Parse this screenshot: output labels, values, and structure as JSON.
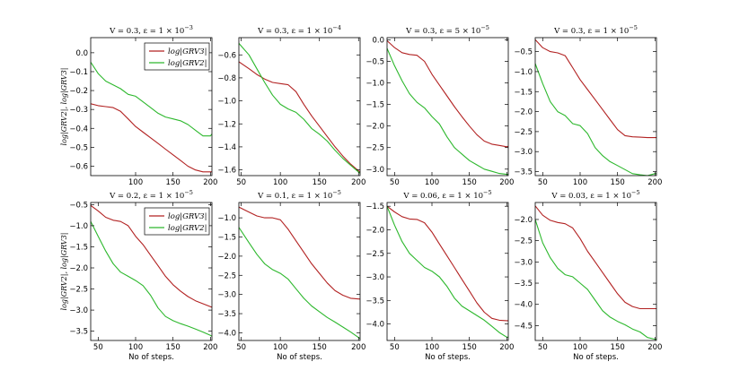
{
  "chart_data": [
    {
      "type": "line",
      "title": "V = 0.3, ε = 1 × 10^-3",
      "xlabel": "",
      "ylabel": "log|GRV2|, log|GRV3|",
      "xlim": [
        40,
        202
      ],
      "ylim": [
        -0.65,
        0.08
      ],
      "xticks": [
        100,
        150,
        200
      ],
      "yticks": [
        0.0,
        -0.1,
        -0.2,
        -0.3,
        -0.4,
        -0.5,
        -0.6
      ],
      "legend": true,
      "series": [
        {
          "name": "log|GRV3|",
          "color": "#b22222",
          "x": [
            40,
            50,
            60,
            70,
            80,
            90,
            100,
            110,
            120,
            130,
            140,
            150,
            160,
            170,
            180,
            190,
            200,
            202
          ],
          "y": [
            -0.27,
            -0.28,
            -0.285,
            -0.29,
            -0.31,
            -0.35,
            -0.39,
            -0.42,
            -0.45,
            -0.48,
            -0.51,
            -0.54,
            -0.57,
            -0.6,
            -0.62,
            -0.63,
            -0.63,
            -0.63
          ]
        },
        {
          "name": "log|GRV2|",
          "color": "#2db82d",
          "x": [
            40,
            50,
            60,
            70,
            80,
            90,
            100,
            110,
            120,
            130,
            140,
            150,
            160,
            170,
            180,
            190,
            200,
            202
          ],
          "y": [
            -0.05,
            -0.11,
            -0.15,
            -0.17,
            -0.19,
            -0.22,
            -0.23,
            -0.26,
            -0.29,
            -0.32,
            -0.34,
            -0.35,
            -0.36,
            -0.38,
            -0.41,
            -0.44,
            -0.44,
            -0.43
          ]
        }
      ]
    },
    {
      "type": "line",
      "title": "V = 0.3, ε = 1 × 10^-4",
      "xlabel": "",
      "ylabel": "",
      "xlim": [
        47,
        202
      ],
      "ylim": [
        -1.65,
        -0.45
      ],
      "xticks": [
        50,
        100,
        150,
        200
      ],
      "yticks": [
        -0.6,
        -0.8,
        -1.0,
        -1.2,
        -1.4,
        -1.6
      ],
      "legend": false,
      "series": [
        {
          "name": "log|GRV3|",
          "color": "#b22222",
          "x": [
            47,
            60,
            70,
            80,
            90,
            100,
            110,
            120,
            130,
            140,
            150,
            160,
            170,
            180,
            190,
            202
          ],
          "y": [
            -0.66,
            -0.72,
            -0.77,
            -0.81,
            -0.84,
            -0.85,
            -0.86,
            -0.92,
            -1.03,
            -1.13,
            -1.22,
            -1.31,
            -1.4,
            -1.48,
            -1.55,
            -1.62
          ]
        },
        {
          "name": "log|GRV2|",
          "color": "#2db82d",
          "x": [
            47,
            60,
            70,
            80,
            90,
            100,
            110,
            120,
            130,
            140,
            150,
            160,
            170,
            180,
            190,
            202
          ],
          "y": [
            -0.5,
            -0.6,
            -0.72,
            -0.84,
            -0.95,
            -1.03,
            -1.07,
            -1.1,
            -1.16,
            -1.24,
            -1.29,
            -1.35,
            -1.43,
            -1.5,
            -1.56,
            -1.63
          ]
        }
      ]
    },
    {
      "type": "line",
      "title": "V = 0.3, ε = 5 × 10^-5",
      "xlabel": "",
      "ylabel": "",
      "xlim": [
        40,
        202
      ],
      "ylim": [
        -3.15,
        0.05
      ],
      "xticks": [
        50,
        100,
        150,
        200
      ],
      "yticks": [
        0.0,
        -0.5,
        -1.0,
        -1.5,
        -2.0,
        -2.5,
        -3.0
      ],
      "legend": false,
      "series": [
        {
          "name": "log|GRV3|",
          "color": "#b22222",
          "x": [
            40,
            50,
            60,
            70,
            80,
            90,
            100,
            110,
            120,
            130,
            140,
            150,
            160,
            170,
            180,
            190,
            200,
            202
          ],
          "y": [
            -0.02,
            -0.18,
            -0.3,
            -0.34,
            -0.36,
            -0.5,
            -0.8,
            -1.05,
            -1.3,
            -1.55,
            -1.78,
            -2.0,
            -2.2,
            -2.35,
            -2.42,
            -2.45,
            -2.48,
            -2.47
          ]
        },
        {
          "name": "log|GRV2|",
          "color": "#2db82d",
          "x": [
            40,
            50,
            60,
            70,
            80,
            90,
            100,
            110,
            120,
            130,
            140,
            150,
            160,
            170,
            180,
            190,
            200,
            202
          ],
          "y": [
            -0.2,
            -0.6,
            -0.95,
            -1.25,
            -1.45,
            -1.58,
            -1.78,
            -1.95,
            -2.25,
            -2.5,
            -2.65,
            -2.8,
            -2.9,
            -3.0,
            -3.05,
            -3.1,
            -3.12,
            -3.12
          ]
        }
      ]
    },
    {
      "type": "line",
      "title": "V = 0.3, ε = 1 × 10^-5",
      "xlabel": "",
      "ylabel": "",
      "xlim": [
        40,
        202
      ],
      "ylim": [
        -3.6,
        -0.15
      ],
      "xticks": [
        50,
        100,
        150,
        200
      ],
      "yticks": [
        -0.5,
        -1.0,
        -1.5,
        -2.0,
        -2.5,
        -3.0,
        -3.5
      ],
      "legend": false,
      "series": [
        {
          "name": "log|GRV3|",
          "color": "#b22222",
          "x": [
            40,
            50,
            60,
            70,
            80,
            90,
            100,
            110,
            120,
            130,
            140,
            150,
            160,
            170,
            180,
            190,
            200,
            202
          ],
          "y": [
            -0.2,
            -0.4,
            -0.5,
            -0.53,
            -0.6,
            -0.9,
            -1.2,
            -1.45,
            -1.7,
            -1.95,
            -2.2,
            -2.45,
            -2.6,
            -2.63,
            -2.64,
            -2.65,
            -2.65,
            -2.65
          ]
        },
        {
          "name": "log|GRV2|",
          "color": "#2db82d",
          "x": [
            40,
            50,
            60,
            70,
            80,
            90,
            100,
            110,
            120,
            130,
            140,
            150,
            160,
            170,
            180,
            190,
            200,
            202
          ],
          "y": [
            -0.8,
            -1.3,
            -1.75,
            -2.0,
            -2.1,
            -2.3,
            -2.35,
            -2.55,
            -2.9,
            -3.1,
            -3.25,
            -3.35,
            -3.45,
            -3.55,
            -3.58,
            -3.6,
            -3.55,
            -3.55
          ]
        }
      ]
    },
    {
      "type": "line",
      "title": "V = 0.2, ε = 1 × 10^-5",
      "xlabel": "No of steps.",
      "ylabel": "log|GRV2|, log|GRV3|",
      "xlim": [
        40,
        202
      ],
      "ylim": [
        -3.72,
        -0.45
      ],
      "xticks": [
        50,
        100,
        150,
        200
      ],
      "yticks": [
        -0.5,
        -1.0,
        -1.5,
        -2.0,
        -2.5,
        -3.0,
        -3.5
      ],
      "legend": true,
      "series": [
        {
          "name": "log|GRV3|",
          "color": "#b22222",
          "x": [
            40,
            50,
            60,
            70,
            80,
            90,
            100,
            110,
            120,
            130,
            140,
            150,
            160,
            170,
            180,
            190,
            200,
            202
          ],
          "y": [
            -0.52,
            -0.65,
            -0.8,
            -0.87,
            -0.9,
            -1.0,
            -1.25,
            -1.45,
            -1.7,
            -1.95,
            -2.2,
            -2.4,
            -2.55,
            -2.68,
            -2.78,
            -2.85,
            -2.92,
            -2.93
          ]
        },
        {
          "name": "log|GRV2|",
          "color": "#2db82d",
          "x": [
            40,
            50,
            60,
            70,
            80,
            90,
            100,
            110,
            120,
            130,
            140,
            150,
            160,
            170,
            180,
            190,
            200,
            202
          ],
          "y": [
            -0.9,
            -1.25,
            -1.6,
            -1.9,
            -2.1,
            -2.2,
            -2.3,
            -2.42,
            -2.65,
            -2.95,
            -3.15,
            -3.25,
            -3.32,
            -3.38,
            -3.45,
            -3.52,
            -3.6,
            -3.62
          ]
        }
      ]
    },
    {
      "type": "line",
      "title": "V = 0.1, ε = 1 × 10^-5",
      "xlabel": "No of steps.",
      "ylabel": "",
      "xlim": [
        47,
        202
      ],
      "ylim": [
        -4.2,
        -0.6
      ],
      "xticks": [
        50,
        100,
        150,
        200
      ],
      "yticks": [
        -1.0,
        -1.5,
        -2.0,
        -2.5,
        -3.0,
        -3.5,
        -4.0
      ],
      "legend": false,
      "series": [
        {
          "name": "log|GRV3|",
          "color": "#b22222",
          "x": [
            47,
            60,
            70,
            80,
            90,
            100,
            110,
            120,
            130,
            140,
            150,
            160,
            170,
            180,
            190,
            202
          ],
          "y": [
            -0.72,
            -0.85,
            -0.95,
            -1.0,
            -1.0,
            -1.05,
            -1.3,
            -1.6,
            -1.9,
            -2.2,
            -2.45,
            -2.7,
            -2.9,
            -3.02,
            -3.1,
            -3.12
          ]
        },
        {
          "name": "log|GRV2|",
          "color": "#2db82d",
          "x": [
            47,
            60,
            70,
            80,
            90,
            100,
            110,
            120,
            130,
            140,
            150,
            160,
            170,
            180,
            190,
            202
          ],
          "y": [
            -1.25,
            -1.65,
            -1.95,
            -2.2,
            -2.35,
            -2.45,
            -2.6,
            -2.85,
            -3.1,
            -3.3,
            -3.45,
            -3.6,
            -3.72,
            -3.85,
            -3.98,
            -4.15
          ]
        }
      ]
    },
    {
      "type": "line",
      "title": "V = 0.06, ε = 1 × 10^-5",
      "xlabel": "No of steps.",
      "ylabel": "",
      "xlim": [
        40,
        202
      ],
      "ylim": [
        -4.35,
        -1.42
      ],
      "xticks": [
        50,
        100,
        150,
        200
      ],
      "yticks": [
        -1.5,
        -2.0,
        -2.5,
        -3.0,
        -3.5,
        -4.0
      ],
      "legend": false,
      "series": [
        {
          "name": "log|GRV3|",
          "color": "#b22222",
          "x": [
            40,
            50,
            60,
            70,
            80,
            90,
            100,
            110,
            120,
            130,
            140,
            150,
            160,
            170,
            180,
            190,
            200,
            202
          ],
          "y": [
            -1.5,
            -1.62,
            -1.72,
            -1.77,
            -1.78,
            -1.85,
            -2.05,
            -2.3,
            -2.55,
            -2.8,
            -3.05,
            -3.3,
            -3.55,
            -3.75,
            -3.88,
            -3.92,
            -3.93,
            -3.93
          ]
        },
        {
          "name": "log|GRV2|",
          "color": "#2db82d",
          "x": [
            40,
            50,
            60,
            70,
            80,
            90,
            100,
            110,
            120,
            130,
            140,
            150,
            160,
            170,
            180,
            190,
            200,
            202
          ],
          "y": [
            -1.5,
            -1.9,
            -2.25,
            -2.5,
            -2.65,
            -2.8,
            -2.88,
            -3.0,
            -3.2,
            -3.45,
            -3.62,
            -3.72,
            -3.82,
            -3.92,
            -4.05,
            -4.18,
            -4.28,
            -4.28
          ]
        }
      ]
    },
    {
      "type": "line",
      "title": "V = 0.03, ε = 1 × 10^-5",
      "xlabel": "No of steps.",
      "ylabel": "",
      "xlim": [
        40,
        202
      ],
      "ylim": [
        -4.85,
        -1.6
      ],
      "xticks": [
        50,
        100,
        150,
        200
      ],
      "yticks": [
        -2.0,
        -2.5,
        -3.0,
        -3.5,
        -4.0,
        -4.5
      ],
      "legend": false,
      "series": [
        {
          "name": "log|GRV3|",
          "color": "#b22222",
          "x": [
            40,
            50,
            60,
            70,
            80,
            90,
            100,
            110,
            120,
            130,
            140,
            150,
            160,
            170,
            180,
            190,
            200,
            202
          ],
          "y": [
            -1.68,
            -1.9,
            -2.02,
            -2.07,
            -2.1,
            -2.2,
            -2.45,
            -2.75,
            -3.0,
            -3.25,
            -3.5,
            -3.75,
            -3.95,
            -4.05,
            -4.1,
            -4.1,
            -4.1,
            -4.1
          ]
        },
        {
          "name": "log|GRV2|",
          "color": "#2db82d",
          "x": [
            40,
            50,
            60,
            70,
            80,
            90,
            100,
            110,
            120,
            130,
            140,
            150,
            160,
            170,
            180,
            190,
            200,
            202
          ],
          "y": [
            -2.0,
            -2.55,
            -2.9,
            -3.15,
            -3.3,
            -3.35,
            -3.5,
            -3.65,
            -3.9,
            -4.15,
            -4.3,
            -4.4,
            -4.48,
            -4.58,
            -4.65,
            -4.78,
            -4.82,
            -4.82
          ]
        }
      ]
    }
  ]
}
